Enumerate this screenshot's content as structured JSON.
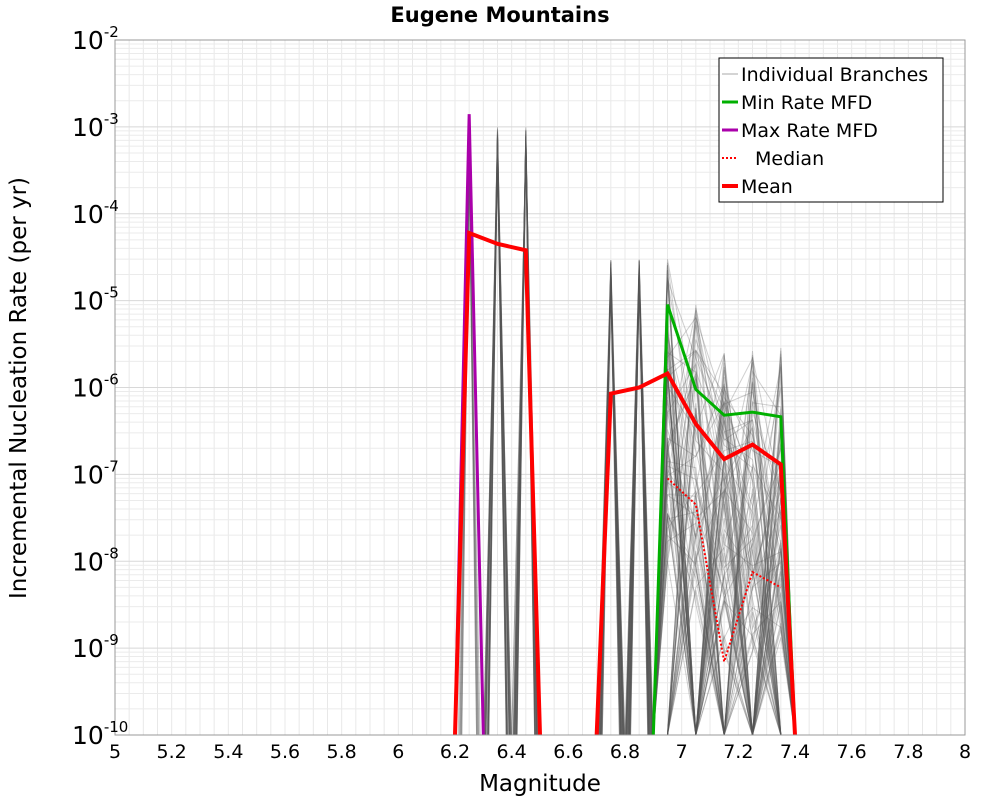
{
  "chart_data": {
    "type": "line",
    "title": "Eugene Mountains",
    "xlabel": "Magnitude",
    "ylabel": "Incremental Nucleation Rate (per yr)",
    "xlim": [
      5,
      8
    ],
    "ylim_log10": [
      -10,
      -2
    ],
    "y_scale": "log",
    "x_ticks": [
      5,
      5.2,
      5.4,
      5.6,
      5.8,
      6,
      6.2,
      6.4,
      6.6,
      6.8,
      7,
      7.2,
      7.4,
      7.6,
      7.8,
      8
    ],
    "x_tick_labels": [
      "5",
      "5.2",
      "5.4",
      "5.6",
      "5.8",
      "6",
      "6.2",
      "6.4",
      "6.6",
      "6.8",
      "7",
      "7.2",
      "7.4",
      "7.6",
      "7.8",
      "8"
    ],
    "y_tick_base": "10",
    "y_ticks_exp": [
      "-2",
      "-3",
      "-4",
      "-5",
      "-6",
      "-7",
      "-8",
      "-9",
      "-10"
    ],
    "legend_position": "top-right",
    "series": [
      {
        "name": "Individual Branches",
        "style": "thin-solid",
        "color": "#555555",
        "envelope_note": "many logic-tree branches; peaks shown as upper envelope",
        "peaks": [
          {
            "x": 6.25,
            "y": 0.0014
          },
          {
            "x": 6.35,
            "y": 0.001
          },
          {
            "x": 6.45,
            "y": 0.001
          },
          {
            "x": 6.75,
            "y": 3e-05
          },
          {
            "x": 6.85,
            "y": 3e-05
          },
          {
            "x": 6.95,
            "y": 3e-05
          },
          {
            "x": 7.05,
            "y": 1e-05
          },
          {
            "x": 7.15,
            "y": 2.5e-06
          },
          {
            "x": 7.25,
            "y": 2.8e-06
          },
          {
            "x": 7.35,
            "y": 3.5e-06
          }
        ]
      },
      {
        "name": "Min Rate MFD",
        "style": "solid",
        "color": "#00b000",
        "x": [
          6.9,
          6.95,
          7.05,
          7.15,
          7.25,
          7.35,
          7.4
        ],
        "y": [
          1e-10,
          9e-06,
          9.5e-07,
          4.8e-07,
          5.2e-07,
          4.6e-07,
          1e-10
        ]
      },
      {
        "name": "Max Rate MFD",
        "style": "solid",
        "color": "#aa00aa",
        "x": [
          6.2,
          6.25,
          6.3
        ],
        "y": [
          1e-10,
          0.0014,
          1e-10
        ]
      },
      {
        "name": "Median",
        "style": "dotted",
        "color": "#ff0000",
        "x": [
          6.95,
          7.05,
          7.15,
          7.25,
          7.35
        ],
        "y": [
          9e-08,
          4.5e-08,
          7e-10,
          7.5e-09,
          5e-09
        ]
      },
      {
        "name": "Mean",
        "style": "thick-solid",
        "color": "#ff0000",
        "segments": [
          {
            "x": [
              6.2,
              6.25,
              6.35,
              6.45,
              6.5
            ],
            "y": [
              1e-10,
              6e-05,
              4.5e-05,
              3.8e-05,
              1e-10
            ]
          },
          {
            "x": [
              6.7,
              6.75,
              6.85,
              6.95,
              7.05,
              7.15,
              7.25,
              7.35,
              7.4
            ],
            "y": [
              1e-10,
              8.5e-07,
              1e-06,
              1.45e-06,
              3.8e-07,
              1.5e-07,
              2.2e-07,
              1.3e-07,
              1e-10
            ]
          }
        ]
      }
    ]
  }
}
